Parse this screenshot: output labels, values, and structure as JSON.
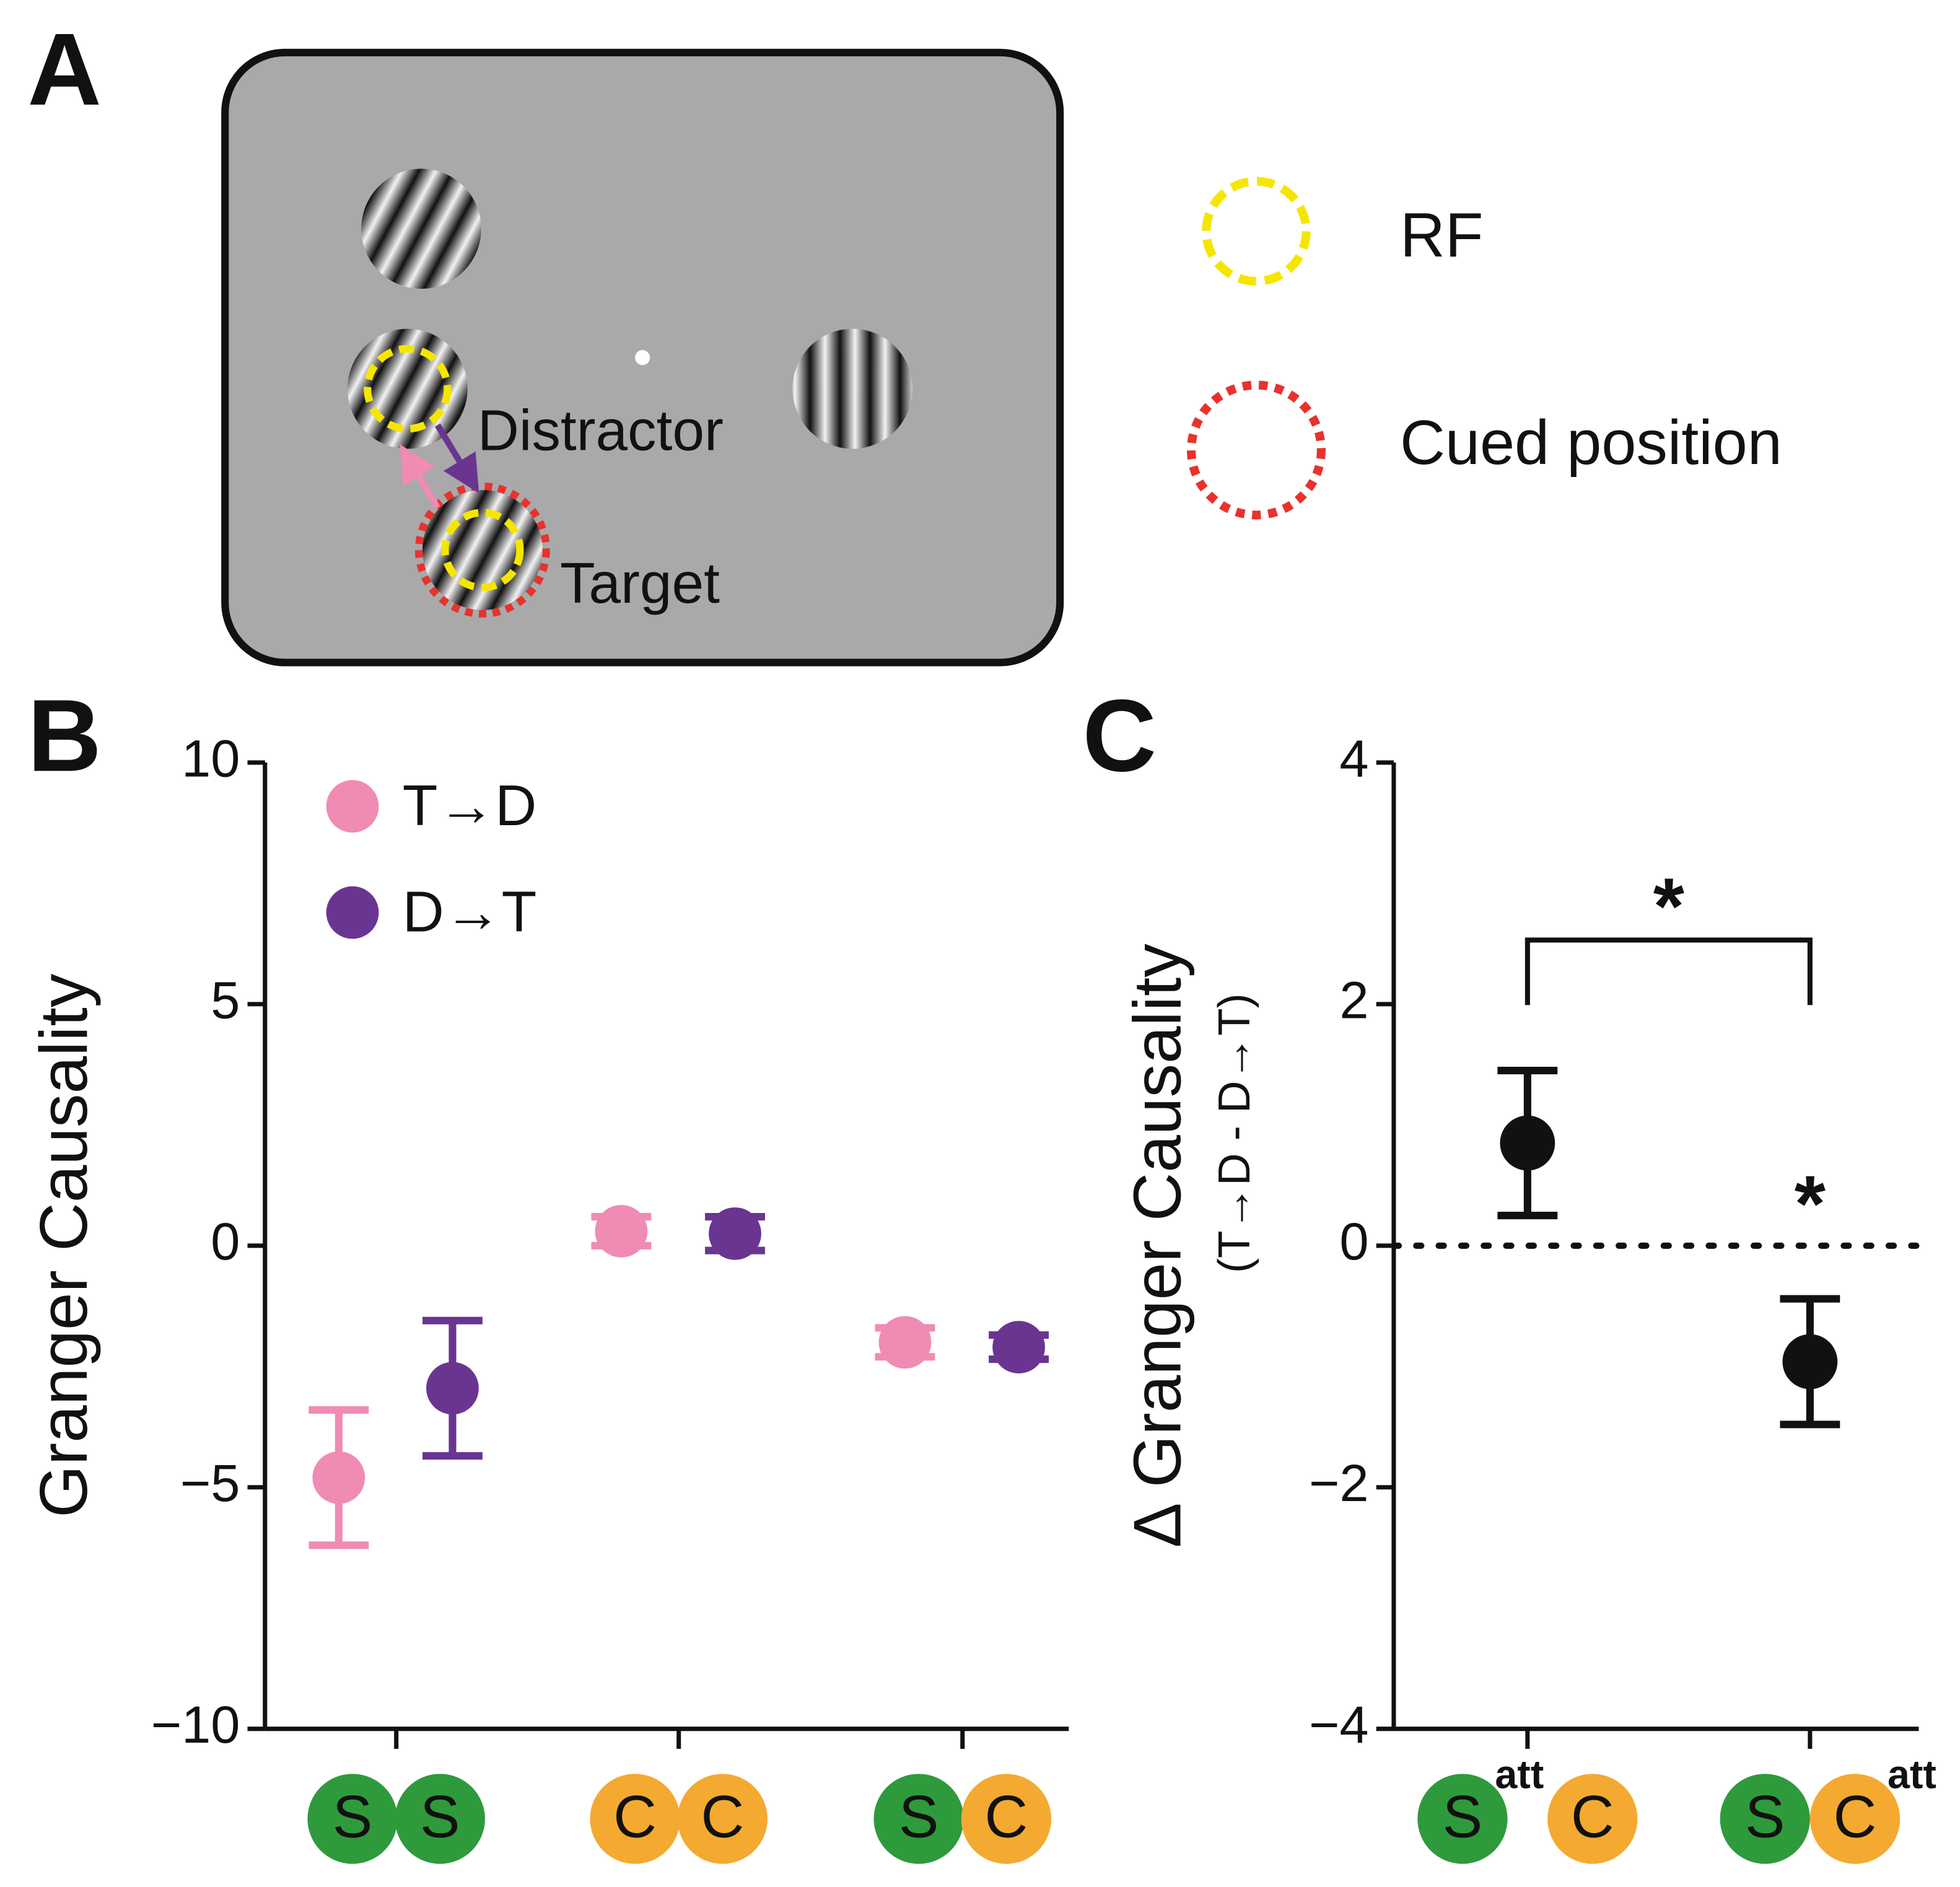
{
  "panel_a": {
    "label": "A",
    "distractor": "Distractor",
    "target": "Target",
    "legend": [
      {
        "text": "RF",
        "color": "#f5e600"
      },
      {
        "text": "Cued position",
        "color": "#e8322e"
      }
    ]
  },
  "chart_data": [
    {
      "type": "errorbar",
      "panel_label": "B",
      "ylabel": "Granger Causality",
      "ylim": [
        -10,
        10
      ],
      "yticks": [
        {
          "value": -10,
          "label": "−10"
        },
        {
          "value": -5,
          "label": "−5"
        },
        0,
        5,
        10
      ],
      "categories": [
        [
          "S",
          "S"
        ],
        [
          "C",
          "C"
        ],
        [
          "S",
          "C"
        ]
      ],
      "category_colors": {
        "S": "#2e9a3c",
        "C": "#f4a931"
      },
      "series": [
        {
          "name": "T→D",
          "color": "#f08bb4",
          "values": [
            -4.8,
            0.3,
            -2.0
          ],
          "errors": [
            1.4,
            0.3,
            0.3
          ]
        },
        {
          "name": "D→T",
          "color": "#6a3591",
          "values": [
            -2.95,
            0.25,
            -2.1
          ],
          "errors": [
            1.4,
            0.35,
            0.25
          ]
        }
      ]
    },
    {
      "type": "errorbar",
      "panel_label": "C",
      "ylabel": "Δ Granger Causality",
      "ylabel_sub": "(T→D - D→T)",
      "ylim": [
        -4,
        4
      ],
      "yticks": [
        {
          "value": -4,
          "label": "−4"
        },
        {
          "value": -2,
          "label": "−2"
        },
        0,
        2,
        4
      ],
      "hline": 0,
      "categories": [
        {
          "letters": [
            "S",
            "C"
          ],
          "superscript": "att",
          "superscript_on": 0
        },
        {
          "letters": [
            "S",
            "C"
          ],
          "superscript": "att",
          "superscript_on": 1
        }
      ],
      "category_colors": {
        "S": "#2e9a3c",
        "C": "#f4a931"
      },
      "series": [
        {
          "color": "#111111",
          "values": [
            0.85,
            -0.96
          ],
          "errors": [
            0.6,
            0.52
          ]
        }
      ],
      "annotations": [
        {
          "text": "*",
          "between": [
            0,
            1
          ]
        },
        {
          "text": "*",
          "at": 1
        }
      ]
    }
  ]
}
